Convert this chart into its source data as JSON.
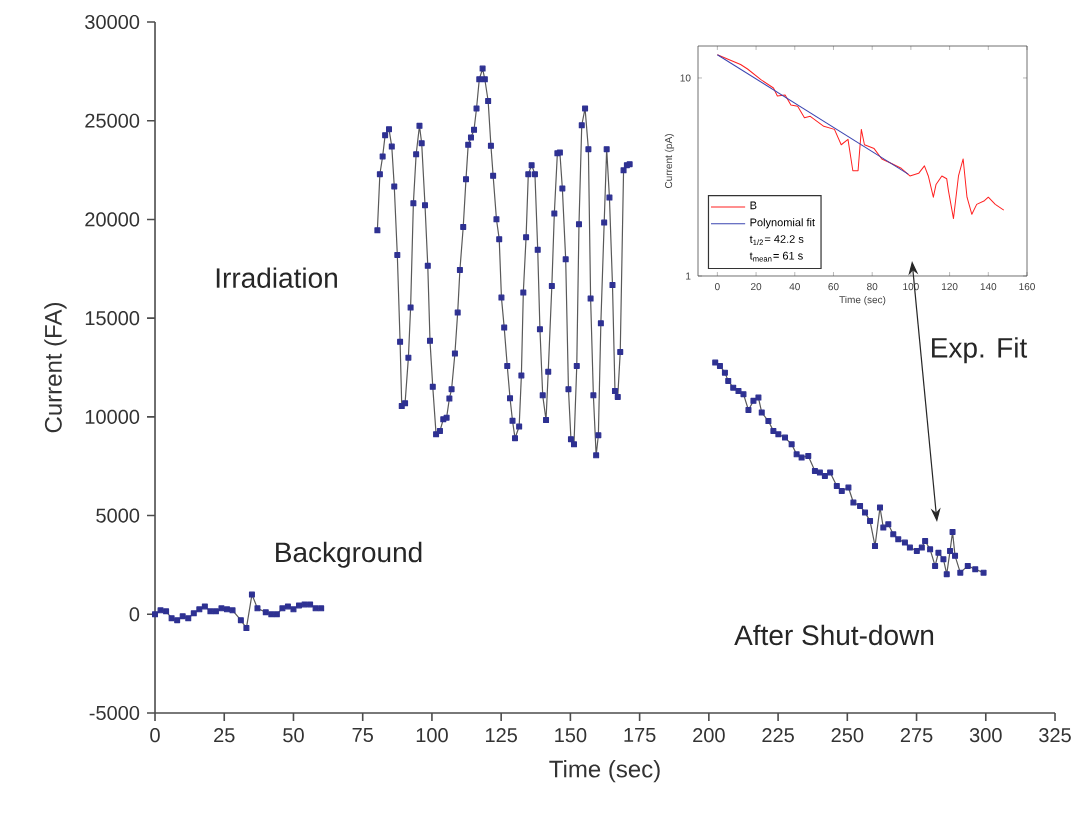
{
  "chart_data": [
    {
      "type": "line",
      "xlabel": "Time (sec)",
      "ylabel": "Current (FA)",
      "marker": "square",
      "xlim": [
        0,
        325
      ],
      "ylim": [
        -5000,
        30000
      ],
      "xticks": [
        0,
        25,
        50,
        75,
        100,
        125,
        150,
        175,
        200,
        225,
        250,
        275,
        300,
        325
      ],
      "yticks": [
        -5000,
        0,
        5000,
        10000,
        15000,
        20000,
        25000,
        30000
      ],
      "annotations": [
        "Irradiation",
        "Background",
        "After Shut-down",
        "Exp. Fit"
      ],
      "x": [
        0,
        2,
        4,
        6,
        8,
        10,
        12,
        14,
        16,
        18,
        20,
        22,
        24,
        26,
        28,
        31,
        33,
        35,
        37,
        40,
        42,
        44,
        46,
        48,
        50,
        52,
        54,
        56,
        58,
        60,
        70,
        80.3,
        81.2,
        82.2,
        83.1,
        84.5,
        85.5,
        86.4,
        87.5,
        88.5,
        89.1,
        90.3,
        91.5,
        92.3,
        93.3,
        94.3,
        95.5,
        96.3,
        97.5,
        98.5,
        99.3,
        100.3,
        101.5,
        102.9,
        104.1,
        105.3,
        106.3,
        107.1,
        108.3,
        109.3,
        110.1,
        111.3,
        112.3,
        113.1,
        114.1,
        115.2,
        116.1,
        117.1,
        118.3,
        119.1,
        120.3,
        121.3,
        122.1,
        123.3,
        124.3,
        125.1,
        126.1,
        127.2,
        128.2,
        129.1,
        130.0,
        131.5,
        132.3,
        133.0,
        134.0,
        134.8,
        136.0,
        137.2,
        138.2,
        139.0,
        140.0,
        141.2,
        142.0,
        143.3,
        144.2,
        145.3,
        146.2,
        147.1,
        148.3,
        149.3,
        150.2,
        151.3,
        152.3,
        153.1,
        154.1,
        155.3,
        156.5,
        157.3,
        158.3,
        159.3,
        160.1,
        161.0,
        162.2,
        163.1,
        164.1,
        165.2,
        166.1,
        167.1,
        168.0,
        169.2,
        170.4,
        171.4,
        186,
        202.3,
        204.0,
        205.8,
        207.0,
        208.8,
        210.7,
        212.5,
        214.3,
        216.1,
        217.9,
        219.1,
        221.5,
        223.3,
        225.1,
        227.5,
        229.9,
        231.7,
        233.5,
        235.9,
        238.3,
        240.1,
        241.9,
        243.8,
        246.2,
        248.0,
        250.4,
        252.2,
        254.6,
        256.4,
        258.2,
        260.0,
        261.8,
        263.0,
        264.8,
        266.6,
        268.4,
        270.8,
        272.6,
        275.1,
        276.9,
        278.1,
        279.9,
        281.7,
        282.9,
        284.7,
        285.9,
        287.1,
        288.0,
        288.9,
        290.8,
        293.5,
        296.2,
        299.2
      ],
      "series": [
        {
          "color": "#2e3192",
          "values": [
            0,
            200,
            150,
            -200,
            -300,
            -100,
            -200,
            50,
            250,
            400,
            150,
            150,
            300,
            250,
            200,
            -300,
            -700,
            1000,
            300,
            100,
            0,
            0,
            300,
            400,
            250,
            450,
            500,
            500,
            300,
            300,
            null,
            19450,
            22290,
            23190,
            24270,
            24570,
            23690,
            21670,
            18200,
            13800,
            10550,
            10690,
            13000,
            15540,
            20820,
            23300,
            24740,
            23860,
            20720,
            17650,
            13850,
            11520,
            9120,
            9290,
            9880,
            9960,
            10930,
            11400,
            13210,
            15280,
            17440,
            19620,
            22040,
            23780,
            24150,
            24540,
            25620,
            27100,
            27640,
            27100,
            26000,
            23730,
            22210,
            20010,
            19000,
            16040,
            14520,
            12580,
            10940,
            9800,
            8920,
            9510,
            12100,
            16300,
            19100,
            22290,
            22750,
            22290,
            18460,
            14440,
            11090,
            9840,
            12290,
            16630,
            20300,
            23350,
            23390,
            21570,
            17980,
            11400,
            8870,
            8610,
            12580,
            19760,
            24770,
            25620,
            23560,
            15990,
            11090,
            8050,
            9070,
            14740,
            19840,
            23560,
            21110,
            16680,
            11310,
            11010,
            13290,
            22490,
            22750,
            22800,
            null,
            12750,
            12580,
            12240,
            11820,
            11480,
            11310,
            11150,
            10350,
            10810,
            10980,
            10220,
            9790,
            9290,
            9120,
            8950,
            8610,
            8100,
            7940,
            8020,
            7260,
            7180,
            7010,
            7180,
            6500,
            6250,
            6420,
            5660,
            5490,
            5150,
            4730,
            3460,
            5410,
            4390,
            4560,
            4050,
            3800,
            3630,
            3380,
            3210,
            3380,
            3710,
            3290,
            2450,
            3120,
            2790,
            2030,
            3210,
            4170,
            2960,
            2110,
            2450,
            2280,
            2110
          ]
        }
      ]
    },
    {
      "type": "line",
      "xlabel": "Time (sec)",
      "ylabel": "Current (pA)",
      "log": "y",
      "legend": "bottom left",
      "xlim": [
        -10,
        160
      ],
      "ylim": [
        1,
        14.5
      ],
      "xticks": [
        0,
        20,
        40,
        60,
        80,
        100,
        120,
        140,
        160
      ],
      "yticks": [
        1,
        10
      ],
      "annotations": [
        "t$_{1/2}$= 42.2 s",
        "t$_{mean}$= 61 s"
      ],
      "series": [
        {
          "name": "B",
          "color": "#ff2020",
          "x": [
            0,
            12,
            15.6,
            22.5,
            29,
            31,
            35,
            38,
            41.5,
            45,
            48,
            55,
            60.5,
            64,
            67.5,
            70,
            72.7,
            74.4,
            76,
            81,
            85,
            90,
            95,
            99.5,
            104,
            107,
            109,
            111.6,
            113,
            116,
            118.5,
            119.4,
            122,
            124.6,
            127,
            129,
            131.5,
            134,
            138,
            140,
            143.6,
            148
          ],
          "values": [
            13.1,
            11.7,
            11.1,
            9.8,
            8.9,
            8.1,
            8.2,
            7.3,
            7.2,
            6.3,
            6.4,
            5.7,
            5.5,
            4.6,
            4.9,
            3.4,
            3.4,
            5.5,
            4.6,
            4.4,
            3.9,
            3.7,
            3.5,
            3.2,
            3.3,
            3.6,
            3.2,
            2.5,
            2.9,
            3.2,
            3.1,
            2.7,
            1.95,
            3.2,
            3.9,
            2.5,
            2.05,
            2.3,
            2.4,
            2.5,
            2.3,
            2.15
          ]
        },
        {
          "name": "Polynomial fit",
          "color": "#3a44b0",
          "x": [
            0,
            98.6
          ],
          "values": [
            13.1,
            3.27
          ]
        }
      ]
    }
  ]
}
